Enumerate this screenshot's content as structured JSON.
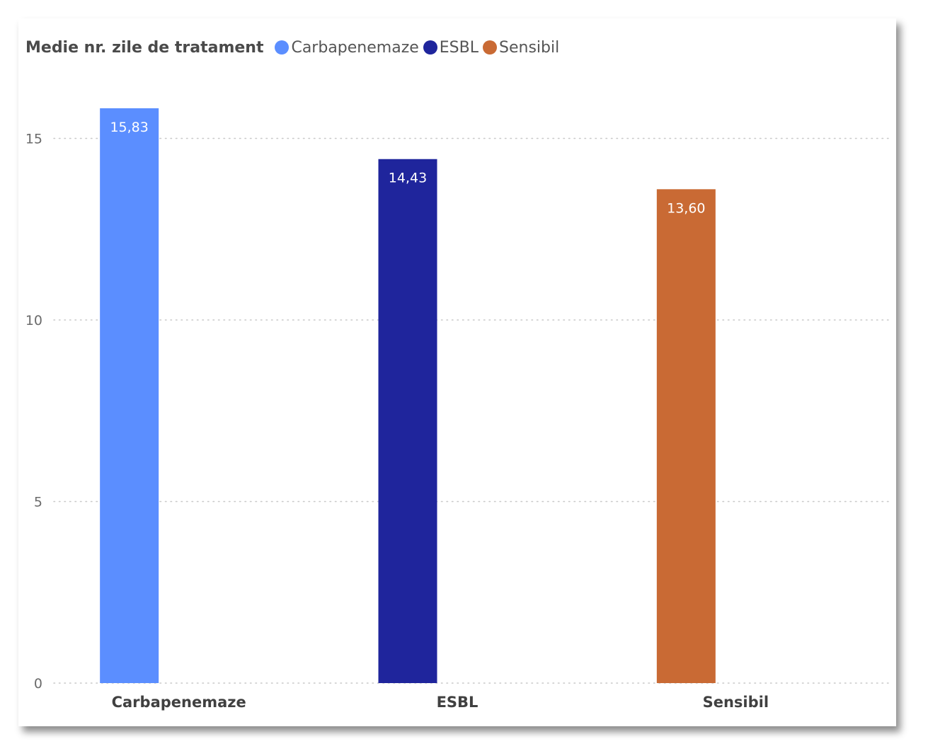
{
  "chart_data": {
    "type": "bar",
    "title": "Medie nr. zile de tratament",
    "categories": [
      "Carbapenemaze",
      "ESBL",
      "Sensibil"
    ],
    "values": [
      15.83,
      14.43,
      13.6
    ],
    "data_labels": [
      "15,83",
      "14,43",
      "13,60"
    ],
    "colors": [
      "#5b8eff",
      "#1f259c",
      "#c96a34"
    ],
    "ylim": [
      0,
      17
    ],
    "yticks": [
      0,
      5,
      10,
      15
    ],
    "ytick_labels": [
      "0",
      "5",
      "10",
      "15"
    ],
    "xlabel": "",
    "ylabel": "",
    "grid": "horizontal dotted",
    "legend": {
      "placement": "top-left",
      "entries": [
        "Carbapenemaze",
        "ESBL",
        "Sensibil"
      ]
    }
  }
}
